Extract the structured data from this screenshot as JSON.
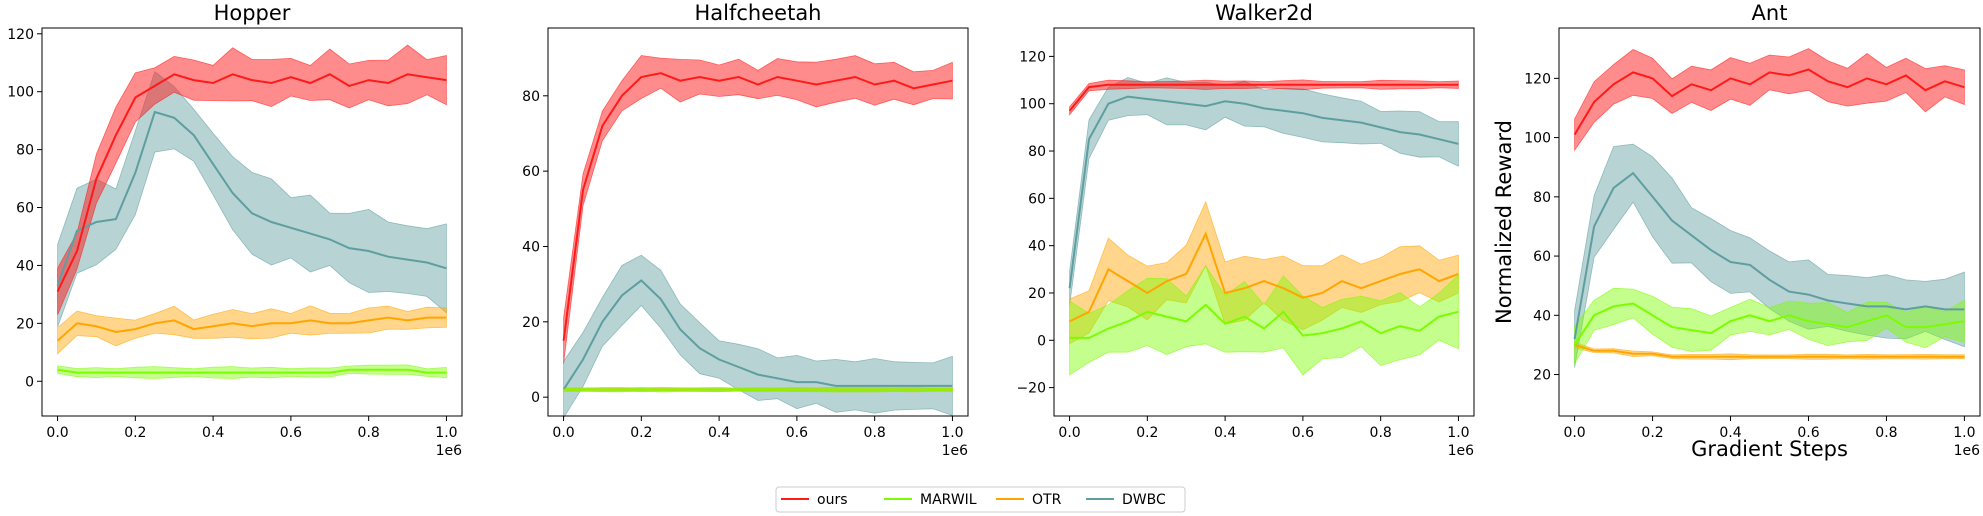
{
  "legend": [
    {
      "name": "ours",
      "color": "#ff1a1a"
    },
    {
      "name": "MARWIL",
      "color": "#7CFC00"
    },
    {
      "name": "OTR",
      "color": "#FFA500"
    },
    {
      "name": "DWBC",
      "color": "#5F9EA0"
    }
  ],
  "chart_data": [
    {
      "type": "line",
      "title": "Hopper",
      "xlabel": "",
      "ylabel": "",
      "x_scale_label": "1e6",
      "xlim": [
        -0.04,
        1.04
      ],
      "ylim": [
        -12,
        122
      ],
      "xticks": [
        0.0,
        0.2,
        0.4,
        0.6,
        0.8,
        1.0
      ],
      "xtick_labels": [
        "0.0",
        "0.2",
        "0.4",
        "0.6",
        "0.8",
        "1.0"
      ],
      "yticks": [
        0,
        20,
        40,
        60,
        80,
        100,
        120
      ],
      "ytick_labels": [
        "0",
        "20",
        "40",
        "60",
        "80",
        "100",
        "120"
      ],
      "grid": false,
      "x": [
        0,
        0.05,
        0.1,
        0.15,
        0.2,
        0.25,
        0.3,
        0.35,
        0.4,
        0.45,
        0.5,
        0.55,
        0.6,
        0.65,
        0.7,
        0.75,
        0.8,
        0.85,
        0.9,
        0.95,
        1.0
      ],
      "series": [
        {
          "name": "ours",
          "values": [
            31,
            45,
            70,
            85,
            98,
            102,
            106,
            104,
            103,
            106,
            104,
            103,
            105,
            103,
            106,
            102,
            104,
            103,
            106,
            105,
            104
          ],
          "band": 10
        },
        {
          "name": "MARWIL",
          "values": [
            4,
            3,
            3,
            3,
            3,
            3,
            3,
            3,
            3,
            3,
            3,
            3,
            3,
            3,
            3,
            4,
            4,
            4,
            4,
            3,
            3
          ],
          "band": 2
        },
        {
          "name": "OTR",
          "values": [
            14,
            20,
            19,
            17,
            18,
            20,
            21,
            18,
            19,
            20,
            19,
            20,
            20,
            21,
            20,
            20,
            21,
            22,
            21,
            22,
            22
          ],
          "band": 5
        },
        {
          "name": "DWBC",
          "values": [
            33,
            52,
            55,
            56,
            72,
            93,
            91,
            85,
            75,
            65,
            58,
            55,
            53,
            51,
            49,
            46,
            45,
            43,
            42,
            41,
            39
          ],
          "band": 15
        }
      ]
    },
    {
      "type": "line",
      "title": "Halfcheetah",
      "xlabel": "",
      "ylabel": "",
      "x_scale_label": "1e6",
      "xlim": [
        -0.04,
        1.04
      ],
      "ylim": [
        -5,
        98
      ],
      "xticks": [
        0.0,
        0.2,
        0.4,
        0.6,
        0.8,
        1.0
      ],
      "xtick_labels": [
        "0.0",
        "0.2",
        "0.4",
        "0.6",
        "0.8",
        "1.0"
      ],
      "yticks": [
        0,
        20,
        40,
        60,
        80
      ],
      "ytick_labels": [
        "0",
        "20",
        "40",
        "60",
        "80"
      ],
      "grid": false,
      "x": [
        0,
        0.05,
        0.1,
        0.15,
        0.2,
        0.25,
        0.3,
        0.35,
        0.4,
        0.45,
        0.5,
        0.55,
        0.6,
        0.65,
        0.7,
        0.75,
        0.8,
        0.85,
        0.9,
        0.95,
        1.0
      ],
      "series": [
        {
          "name": "ours",
          "values": [
            15,
            55,
            72,
            80,
            85,
            86,
            84,
            85,
            84,
            85,
            83,
            85,
            84,
            83,
            84,
            85,
            83,
            84,
            82,
            83,
            84
          ],
          "band": 6
        },
        {
          "name": "MARWIL",
          "values": [
            2,
            2,
            2,
            2,
            2,
            2,
            2,
            2,
            2,
            2,
            2,
            2,
            2,
            2,
            2,
            2,
            2,
            2,
            2,
            2,
            2
          ],
          "band": 0.6
        },
        {
          "name": "OTR",
          "values": [
            2,
            2,
            2,
            2,
            2,
            2,
            2,
            2,
            2,
            2,
            2,
            2,
            2,
            2,
            2,
            2,
            2,
            2,
            2,
            2,
            2
          ],
          "band": 0.6
        },
        {
          "name": "DWBC",
          "values": [
            2,
            10,
            20,
            27,
            31,
            26,
            18,
            13,
            10,
            8,
            6,
            5,
            4,
            4,
            3,
            3,
            3,
            3,
            3,
            3,
            3
          ],
          "band": 8
        }
      ]
    },
    {
      "type": "line",
      "title": "Walker2d",
      "xlabel": "",
      "ylabel": "",
      "x_scale_label": "1e6",
      "xlim": [
        -0.04,
        1.04
      ],
      "ylim": [
        -32,
        132
      ],
      "xticks": [
        0.0,
        0.2,
        0.4,
        0.6,
        0.8,
        1.0
      ],
      "xtick_labels": [
        "0.0",
        "0.2",
        "0.4",
        "0.6",
        "0.8",
        "1.0"
      ],
      "yticks": [
        -20,
        0,
        20,
        40,
        60,
        80,
        100,
        120
      ],
      "ytick_labels": [
        "−20",
        "0",
        "20",
        "40",
        "60",
        "80",
        "100",
        "120"
      ],
      "grid": false,
      "x": [
        0,
        0.05,
        0.1,
        0.15,
        0.2,
        0.25,
        0.3,
        0.35,
        0.4,
        0.45,
        0.5,
        0.55,
        0.6,
        0.65,
        0.7,
        0.75,
        0.8,
        0.85,
        0.9,
        0.95,
        1.0
      ],
      "series": [
        {
          "name": "ours",
          "values": [
            97,
            107,
            108,
            108,
            108,
            108,
            108,
            108,
            108,
            108,
            108,
            108,
            108,
            108,
            108,
            108,
            108,
            108,
            108,
            108,
            108
          ],
          "band": 2
        },
        {
          "name": "MARWIL",
          "values": [
            1,
            1,
            5,
            8,
            12,
            10,
            8,
            15,
            7,
            10,
            5,
            12,
            2,
            3,
            5,
            8,
            3,
            6,
            4,
            10,
            12
          ],
          "band": 16
        },
        {
          "name": "OTR",
          "values": [
            8,
            12,
            30,
            25,
            20,
            25,
            28,
            45,
            20,
            22,
            25,
            22,
            18,
            20,
            25,
            22,
            25,
            28,
            30,
            25,
            28
          ],
          "band": 13
        },
        {
          "name": "DWBC",
          "values": [
            22,
            85,
            100,
            103,
            102,
            101,
            100,
            99,
            101,
            100,
            98,
            97,
            96,
            94,
            93,
            92,
            90,
            88,
            87,
            85,
            83
          ],
          "band": 10
        }
      ]
    },
    {
      "type": "line",
      "title": "Ant",
      "xlabel": "Gradient Steps",
      "ylabel": "Normalized Reward",
      "x_scale_label": "1e6",
      "xlim": [
        -0.04,
        1.04
      ],
      "ylim": [
        6,
        137
      ],
      "xticks": [
        0.0,
        0.2,
        0.4,
        0.6,
        0.8,
        1.0
      ],
      "xtick_labels": [
        "0.0",
        "0.2",
        "0.4",
        "0.6",
        "0.8",
        "1.0"
      ],
      "yticks": [
        20,
        40,
        60,
        80,
        100,
        120
      ],
      "ytick_labels": [
        "20",
        "40",
        "60",
        "80",
        "100",
        "120"
      ],
      "grid": false,
      "x": [
        0,
        0.05,
        0.1,
        0.15,
        0.2,
        0.25,
        0.3,
        0.35,
        0.4,
        0.45,
        0.5,
        0.55,
        0.6,
        0.65,
        0.7,
        0.75,
        0.8,
        0.85,
        0.9,
        0.95,
        1.0
      ],
      "series": [
        {
          "name": "ours",
          "values": [
            101,
            112,
            118,
            122,
            120,
            114,
            118,
            116,
            120,
            118,
            122,
            121,
            123,
            119,
            117,
            120,
            118,
            121,
            116,
            119,
            117
          ],
          "band": 8
        },
        {
          "name": "MARWIL",
          "values": [
            30,
            40,
            43,
            44,
            40,
            36,
            35,
            34,
            38,
            40,
            38,
            40,
            38,
            37,
            36,
            38,
            40,
            36,
            36,
            37,
            38
          ],
          "band": 7
        },
        {
          "name": "OTR",
          "values": [
            30,
            28,
            28,
            27,
            27,
            26,
            26,
            26,
            26,
            26,
            26,
            26,
            26,
            26,
            26,
            26,
            26,
            26,
            26,
            26,
            26
          ],
          "band": 1
        },
        {
          "name": "DWBC",
          "values": [
            32,
            70,
            83,
            88,
            80,
            72,
            67,
            62,
            58,
            57,
            52,
            48,
            47,
            45,
            44,
            43,
            43,
            42,
            43,
            42,
            42
          ],
          "band": 14
        }
      ]
    }
  ]
}
